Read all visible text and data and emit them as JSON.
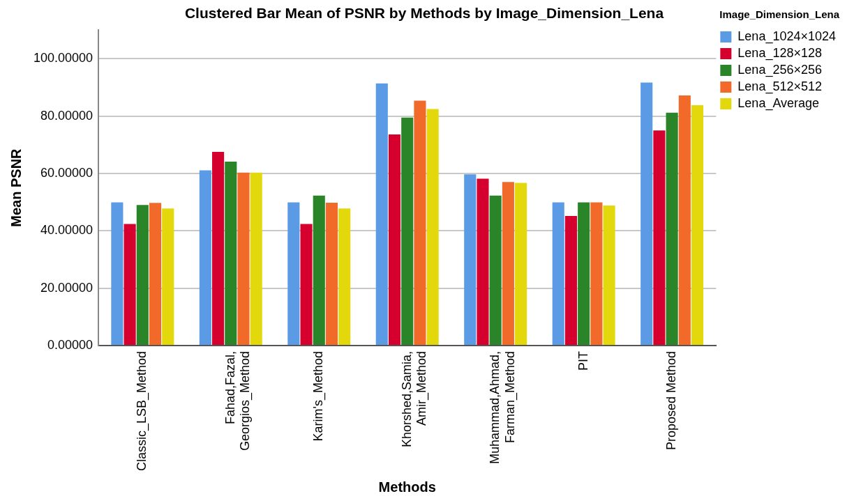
{
  "chart_data": {
    "type": "bar",
    "title": "Clustered Bar Mean of PSNR by Methods by Image_Dimension_Lena",
    "xlabel": "Methods",
    "ylabel": "Mean PSNR",
    "legend_title": "Image_Dimension_Lena",
    "categories": [
      "Classic_LSB_Method",
      "Fahad,Fazal,\nGeorgios_Method",
      "Karim's_Method",
      "Khorshed,Samia,\nAmir_Method",
      "Muhammad,Ahmad,\nFarman_Method",
      "PIT",
      "Proposed Method"
    ],
    "series": [
      {
        "name": "Lena_1024×1024",
        "color": "#5b9be6",
        "values": [
          49.9,
          61.1,
          49.9,
          91.4,
          59.7,
          49.9,
          91.7
        ]
      },
      {
        "name": "Lena_128×128",
        "color": "#d6002f",
        "values": [
          42.4,
          67.5,
          42.4,
          73.6,
          58.2,
          45.2,
          75.0
        ]
      },
      {
        "name": "Lena_256×256",
        "color": "#2a8528",
        "values": [
          49.0,
          64.1,
          52.3,
          79.5,
          52.3,
          49.9,
          81.2
        ]
      },
      {
        "name": "Lena_512×512",
        "color": "#f26a2a",
        "values": [
          49.7,
          60.3,
          49.8,
          85.4,
          57.0,
          49.9,
          87.2
        ]
      },
      {
        "name": "Lena_Average",
        "color": "#e2d80c",
        "values": [
          47.8,
          60.3,
          47.8,
          82.5,
          56.7,
          48.8,
          83.8
        ]
      }
    ],
    "ylim": [
      0,
      110
    ],
    "yticks": [
      {
        "value": 0,
        "label": "0.00000"
      },
      {
        "value": 20,
        "label": "20.00000"
      },
      {
        "value": 40,
        "label": "40.00000"
      },
      {
        "value": 60,
        "label": "60.00000"
      },
      {
        "value": 80,
        "label": "80.00000"
      },
      {
        "value": 100,
        "label": "100.00000"
      }
    ],
    "grid": "y",
    "legend": "top right"
  }
}
